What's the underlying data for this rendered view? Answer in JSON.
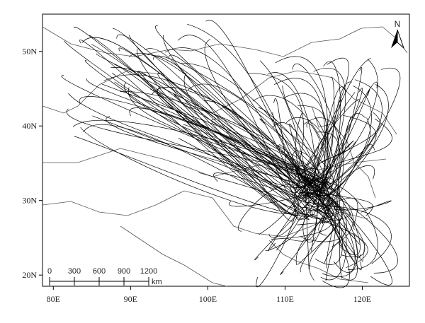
{
  "map": {
    "xlim": [
      78.6,
      126.1
    ],
    "ylim": [
      18.5,
      55.0
    ],
    "xticks": [
      {
        "value": 80,
        "label": "80E"
      },
      {
        "value": 90,
        "label": "90E"
      },
      {
        "value": 100,
        "label": "100E"
      },
      {
        "value": 110,
        "label": "110E"
      },
      {
        "value": 120,
        "label": "120E"
      }
    ],
    "yticks": [
      {
        "value": 20,
        "label": "20N"
      },
      {
        "value": 30,
        "label": "30N"
      },
      {
        "value": 40,
        "label": "40N"
      },
      {
        "value": 50,
        "label": "50N"
      }
    ],
    "scale_bar": {
      "values": [
        0,
        300,
        600,
        900,
        1200
      ],
      "unit": "km"
    },
    "north_label": "N"
  }
}
